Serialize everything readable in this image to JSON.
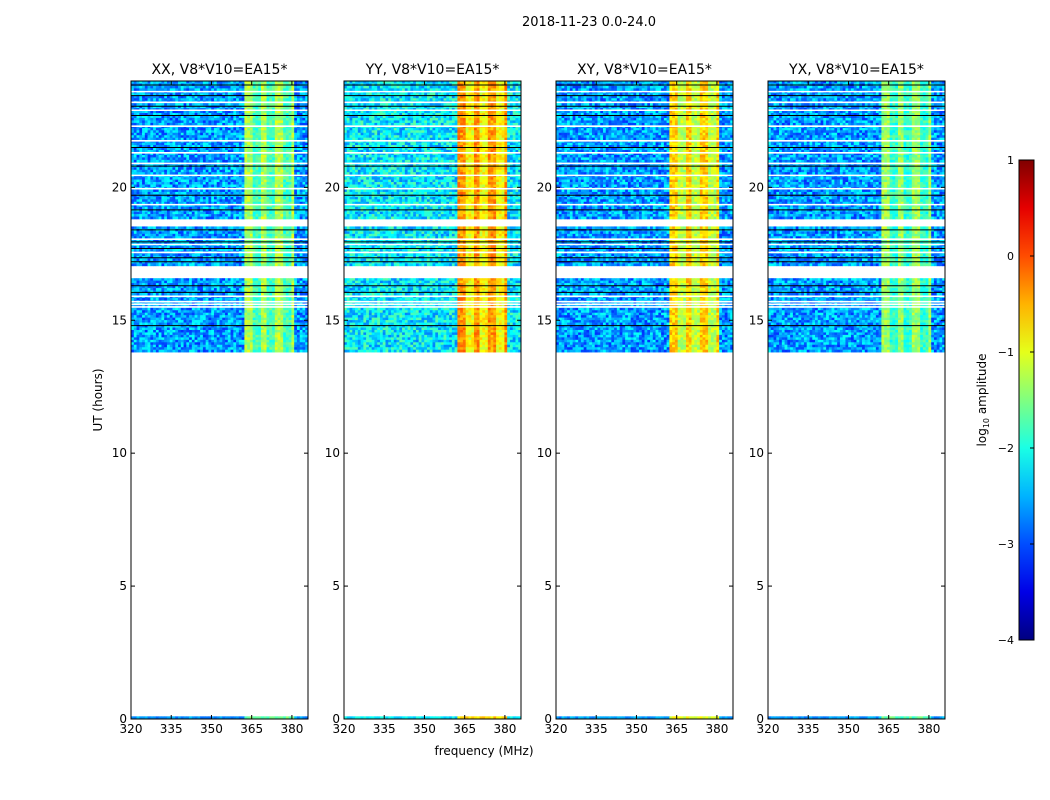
{
  "chart_data": {
    "type": "heatmap",
    "suptitle": "2018-11-23 0.0-24.0",
    "xlabel": "frequency (MHz)",
    "ylabel": "UT (hours)",
    "xlim": [
      320,
      386
    ],
    "ylim": [
      0,
      24
    ],
    "xticks": [
      320,
      335,
      350,
      365,
      380
    ],
    "yticks": [
      0,
      5,
      10,
      15,
      20
    ],
    "data_time_range_hours": [
      13.8,
      24.0
    ],
    "extra_data_row_hours": [
      0.0,
      0.1
    ],
    "flagged_time_bands_hours": [
      [
        18.55,
        18.85
      ],
      [
        16.55,
        17.05
      ]
    ],
    "rfi_band_mhz": [
      362,
      381
    ],
    "panels": [
      {
        "title": "XX, V8*V10=EA15*",
        "base_level": -2.6,
        "rfi_level": -1.6
      },
      {
        "title": "YY, V8*V10=EA15*",
        "base_level": -2.2,
        "rfi_level": -0.7
      },
      {
        "title": "XY, V8*V10=EA15*",
        "base_level": -2.6,
        "rfi_level": -1.0
      },
      {
        "title": "YX, V8*V10=EA15*",
        "base_level": -2.6,
        "rfi_level": -1.7
      }
    ],
    "colorbar": {
      "label": "log10 amplitude",
      "label_main": "log",
      "label_sub": "10",
      "label_tail": " amplitude",
      "range": [
        -4,
        1
      ],
      "ticks": [
        "1",
        "0",
        "−1",
        "−2",
        "−3",
        "−4"
      ],
      "colormap": "jet"
    }
  }
}
